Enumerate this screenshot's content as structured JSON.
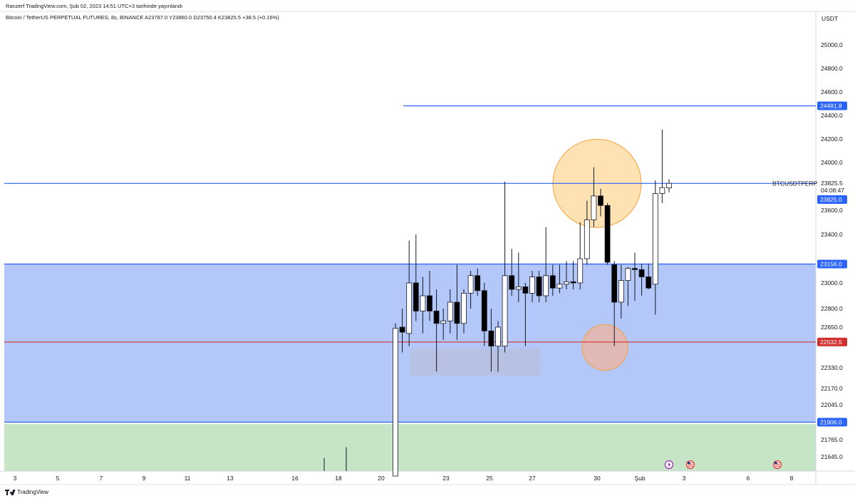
{
  "header": {
    "publisher_line": "Ranzerf TradingView.com, Şub 02, 2023 14:51 UTC+3 tarihinde yayınlandı",
    "symbol_line": "Bitcoin / TetherUS PERPETUAL FUTURES, 8s, BINANCE  A23787.0  Y23860.0  D23750.4  K23825.5  +38.5 (+0.16%)"
  },
  "footer": {
    "brand": "TradingView",
    "logo_icon": "tradingview-logo-icon"
  },
  "colors": {
    "up_body": "#ffffff",
    "down_body": "#000000",
    "wick": "#131722",
    "blue_zone": "#b3c7f8",
    "green_zone": "#c6e4c6",
    "blue_line": "#2962ff",
    "red_line": "#d32f2f",
    "circle_fill": "#fdd89a",
    "circle_stroke": "#f7a23c",
    "gray_box": "#b7bfe0"
  },
  "chart_data": {
    "type": "candlestick",
    "symbol": "BTCUSDTPERP",
    "currency": "USDT",
    "timeframe": "8s",
    "x_tick_labels": [
      "3",
      "5",
      "7",
      "9",
      "11",
      "13",
      "16",
      "18",
      "20",
      "23",
      "25",
      "27",
      "30",
      "Şub",
      "3",
      "6",
      "8"
    ],
    "y_ticks": [
      25000.0,
      24800.0,
      24600.0,
      24400.0,
      24200.0,
      24000.0,
      23600.0,
      23400.0,
      23000.0,
      22800.0,
      22650.0,
      22330.0,
      22170.0,
      22045.0,
      21765.0,
      21645.0
    ],
    "y_tick_labels": [
      "25000.0",
      "24800.0",
      "24600.0",
      "24400.0",
      "24200.0",
      "24000.0",
      "23600.0",
      "23400.0",
      "23000.0",
      "22800.0",
      "22650.0",
      "22330.0",
      "22170.0",
      "22045.0",
      "21765.0",
      "21645.0"
    ],
    "price_tags": [
      {
        "label": "24481.8",
        "value": 24481.8,
        "color": "#2962ff"
      },
      {
        "label": "23825.0",
        "value": 23825.0,
        "color": "#2962ff"
      },
      {
        "label": "23156.0",
        "value": 23156.0,
        "color": "#2962ff"
      },
      {
        "label": "22532.5",
        "value": 22532.5,
        "color": "#d32f2f"
      },
      {
        "label": "21906.0",
        "value": 21906.0,
        "color": "#2962ff"
      }
    ],
    "last_price": {
      "value": "23825.5",
      "countdown": "04:08:47",
      "symbol_label": "BTCUSDTPERP"
    },
    "horizontal_lines": [
      {
        "value": 24481.8,
        "color": "#2962ff",
        "from_index": 1
      },
      {
        "value": 23825.0,
        "color": "#2962ff",
        "from_index": -100
      },
      {
        "value": 22532.5,
        "color": "#d32f2f",
        "from_index": -100
      }
    ],
    "zones": [
      {
        "from": 21906.0,
        "to": 23156.0,
        "color": "blue"
      },
      {
        "from": 21500.0,
        "to": 21906.0,
        "color": "green"
      }
    ],
    "candles": [
      {
        "o": 21500,
        "h": 22680,
        "l": 21500,
        "c": 22640
      },
      {
        "o": 22650,
        "h": 22800,
        "l": 22450,
        "c": 22610
      },
      {
        "o": 22600,
        "h": 23350,
        "l": 22500,
        "c": 23000
      },
      {
        "o": 23000,
        "h": 23400,
        "l": 22700,
        "c": 22780
      },
      {
        "o": 22780,
        "h": 23050,
        "l": 22600,
        "c": 22900
      },
      {
        "o": 22900,
        "h": 23100,
        "l": 22700,
        "c": 22780
      },
      {
        "o": 22780,
        "h": 22950,
        "l": 22300,
        "c": 22680
      },
      {
        "o": 22680,
        "h": 22800,
        "l": 22550,
        "c": 22700
      },
      {
        "o": 22700,
        "h": 22950,
        "l": 22600,
        "c": 22850
      },
      {
        "o": 22850,
        "h": 23150,
        "l": 22550,
        "c": 22680
      },
      {
        "o": 22680,
        "h": 22950,
        "l": 22600,
        "c": 22920
      },
      {
        "o": 22920,
        "h": 23100,
        "l": 22800,
        "c": 23060
      },
      {
        "o": 23060,
        "h": 23120,
        "l": 22900,
        "c": 22940
      },
      {
        "o": 22940,
        "h": 23000,
        "l": 22500,
        "c": 22620
      },
      {
        "o": 22620,
        "h": 22800,
        "l": 22300,
        "c": 22500
      },
      {
        "o": 22500,
        "h": 22700,
        "l": 22300,
        "c": 22650
      },
      {
        "o": 22500,
        "h": 23840,
        "l": 22450,
        "c": 23060
      },
      {
        "o": 23060,
        "h": 23280,
        "l": 22900,
        "c": 22950
      },
      {
        "o": 22950,
        "h": 23250,
        "l": 22850,
        "c": 22970
      },
      {
        "o": 22970,
        "h": 23000,
        "l": 22500,
        "c": 22920
      },
      {
        "o": 22920,
        "h": 23100,
        "l": 22850,
        "c": 23050
      },
      {
        "o": 23050,
        "h": 23100,
        "l": 22850,
        "c": 22900
      },
      {
        "o": 22900,
        "h": 23460,
        "l": 22850,
        "c": 23060
      },
      {
        "o": 23060,
        "h": 23150,
        "l": 22900,
        "c": 22960
      },
      {
        "o": 22960,
        "h": 23150,
        "l": 22920,
        "c": 22990
      },
      {
        "o": 22990,
        "h": 23180,
        "l": 22950,
        "c": 23010
      },
      {
        "o": 23010,
        "h": 23180,
        "l": 22950,
        "c": 23000
      },
      {
        "o": 23000,
        "h": 23500,
        "l": 22950,
        "c": 23200
      },
      {
        "o": 23200,
        "h": 23680,
        "l": 23150,
        "c": 23520
      },
      {
        "o": 23520,
        "h": 23960,
        "l": 23460,
        "c": 23720
      },
      {
        "o": 23720,
        "h": 23780,
        "l": 23550,
        "c": 23640
      },
      {
        "o": 23640,
        "h": 23660,
        "l": 23150,
        "c": 23170
      },
      {
        "o": 23150,
        "h": 23180,
        "l": 22500,
        "c": 22850
      },
      {
        "o": 22850,
        "h": 23150,
        "l": 22720,
        "c": 23020
      },
      {
        "o": 23020,
        "h": 23130,
        "l": 22820,
        "c": 23120
      },
      {
        "o": 23120,
        "h": 23250,
        "l": 22860,
        "c": 23110
      },
      {
        "o": 23110,
        "h": 23160,
        "l": 22900,
        "c": 23050
      },
      {
        "o": 23050,
        "h": 23160,
        "l": 22950,
        "c": 22960
      },
      {
        "o": 22990,
        "h": 23850,
        "l": 22750,
        "c": 23740
      },
      {
        "o": 23740,
        "h": 24280,
        "l": 23660,
        "c": 23790
      },
      {
        "o": 23787,
        "h": 23860,
        "l": 23750,
        "c": 23825.5
      }
    ],
    "volume_bars": [
      {
        "x_label_index": 8,
        "note": "tall",
        "level": 0.3
      },
      {
        "x_label_index": 8,
        "note": "taller",
        "level": 0.45
      }
    ],
    "annotations": [
      {
        "type": "circle",
        "center_price": 23825,
        "label": ""
      },
      {
        "type": "circle",
        "center_price": 22490,
        "label": ""
      },
      {
        "type": "rect",
        "from_price": 22270,
        "to_price": 22480,
        "label": ""
      }
    ],
    "event_markers": [
      {
        "icon": "lightning-icon",
        "x_after_label": "Şub"
      },
      {
        "icon": "us-flag-icon",
        "x_after_label": "Şub"
      },
      {
        "icon": "us-flag-icon",
        "x_after_label": "8"
      }
    ]
  }
}
